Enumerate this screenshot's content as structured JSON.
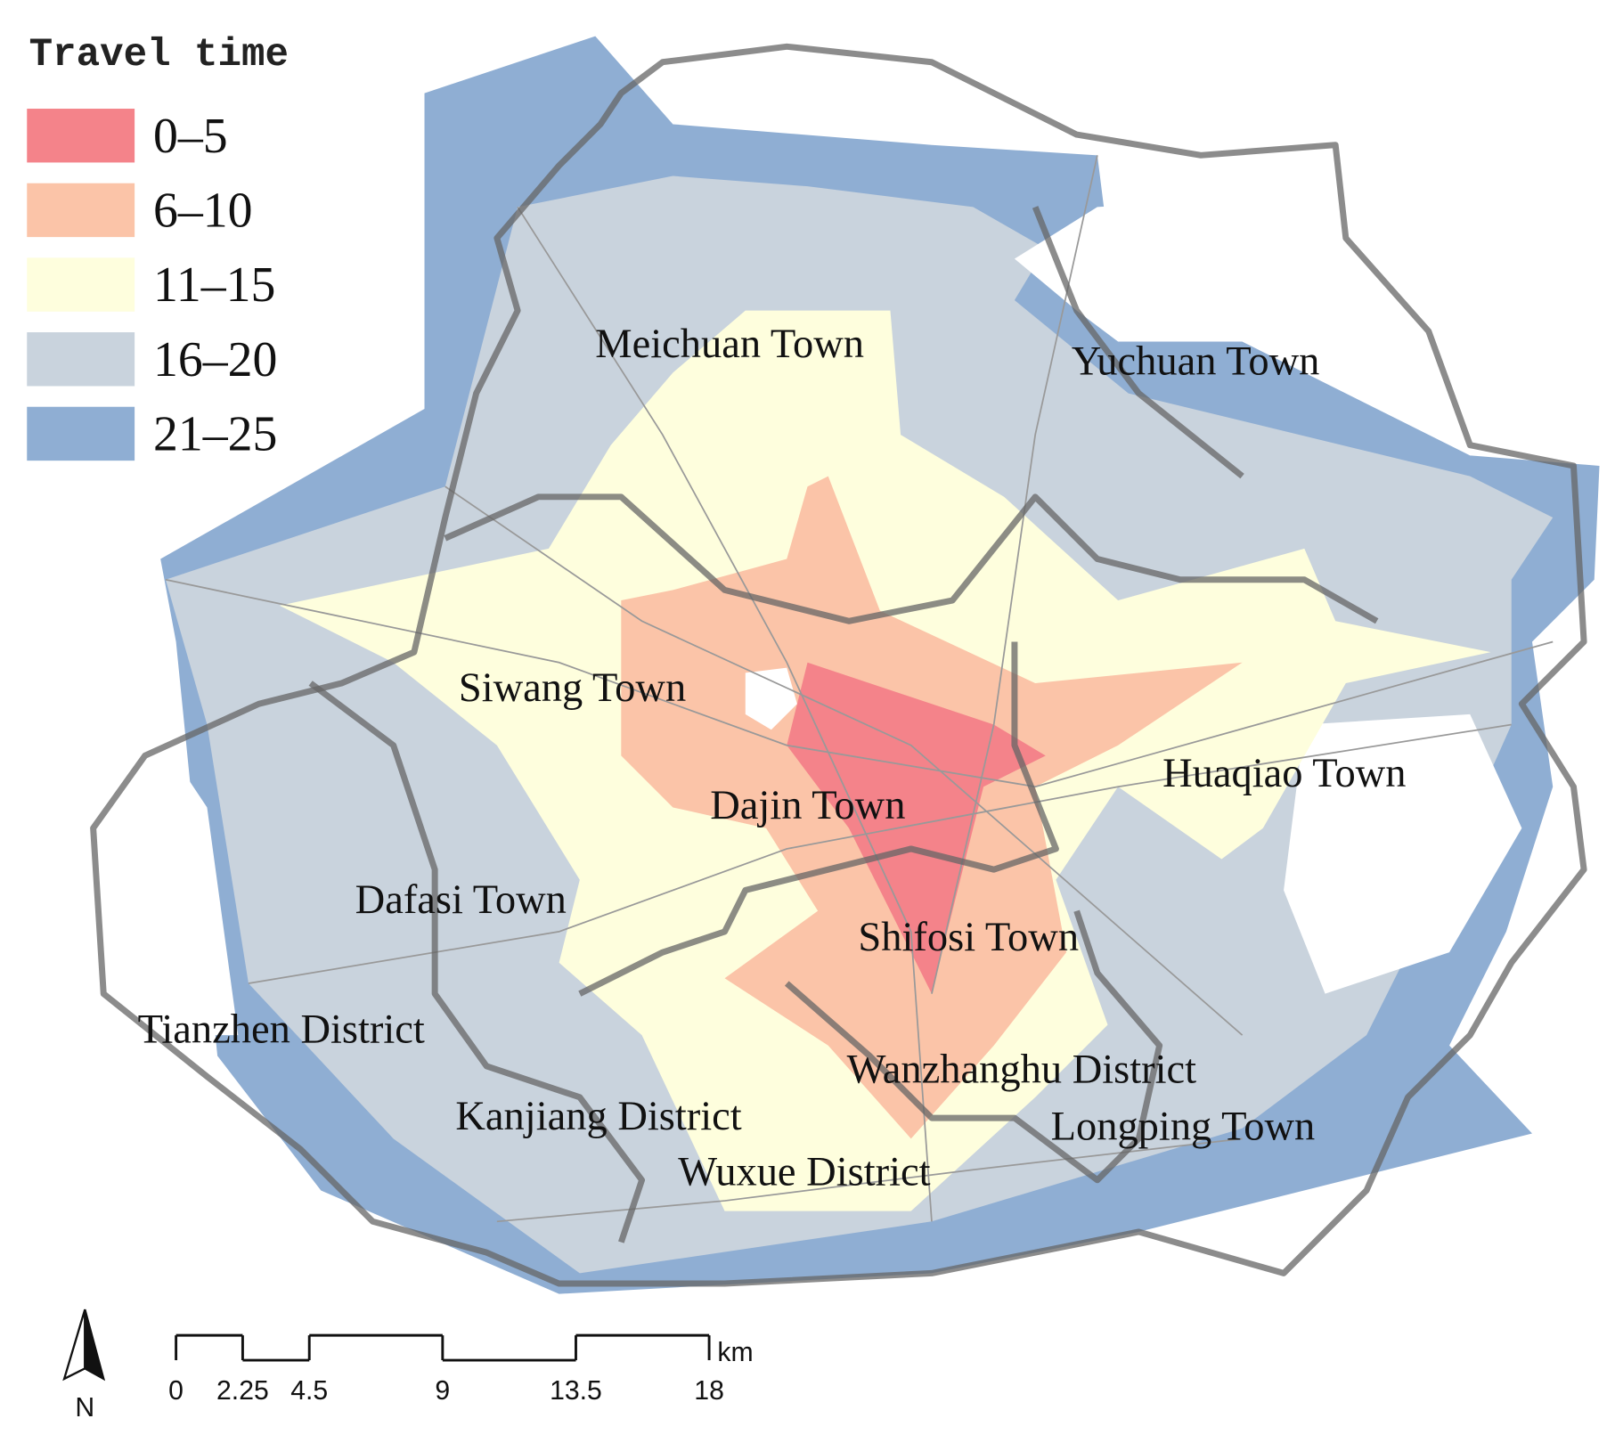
{
  "legend": {
    "title": "Travel time",
    "items": [
      {
        "label": "0–5",
        "color": "#f4838a"
      },
      {
        "label": "6–10",
        "color": "#fbc4a8"
      },
      {
        "label": "11–15",
        "color": "#fefedd"
      },
      {
        "label": "16–20",
        "color": "#c9d3dd"
      },
      {
        "label": "21–25",
        "color": "#8faed3"
      }
    ]
  },
  "places": [
    {
      "label": "Meichuan Town"
    },
    {
      "label": "Yuchuan Town"
    },
    {
      "label": "Siwang Town"
    },
    {
      "label": "Huaqiao Town"
    },
    {
      "label": "Dajin Town"
    },
    {
      "label": "Dafasi Town"
    },
    {
      "label": "Shifosi Town"
    },
    {
      "label": "Tianzhen District"
    },
    {
      "label": "Wanzhanghu District"
    },
    {
      "label": "Kanjiang District"
    },
    {
      "label": "Longping Town"
    },
    {
      "label": "Wuxue District"
    }
  ],
  "scale_bar": {
    "ticks": [
      0,
      2.25,
      4.5,
      9,
      13.5,
      18
    ],
    "unit": "km"
  },
  "north_arrow": {
    "label": "N"
  }
}
